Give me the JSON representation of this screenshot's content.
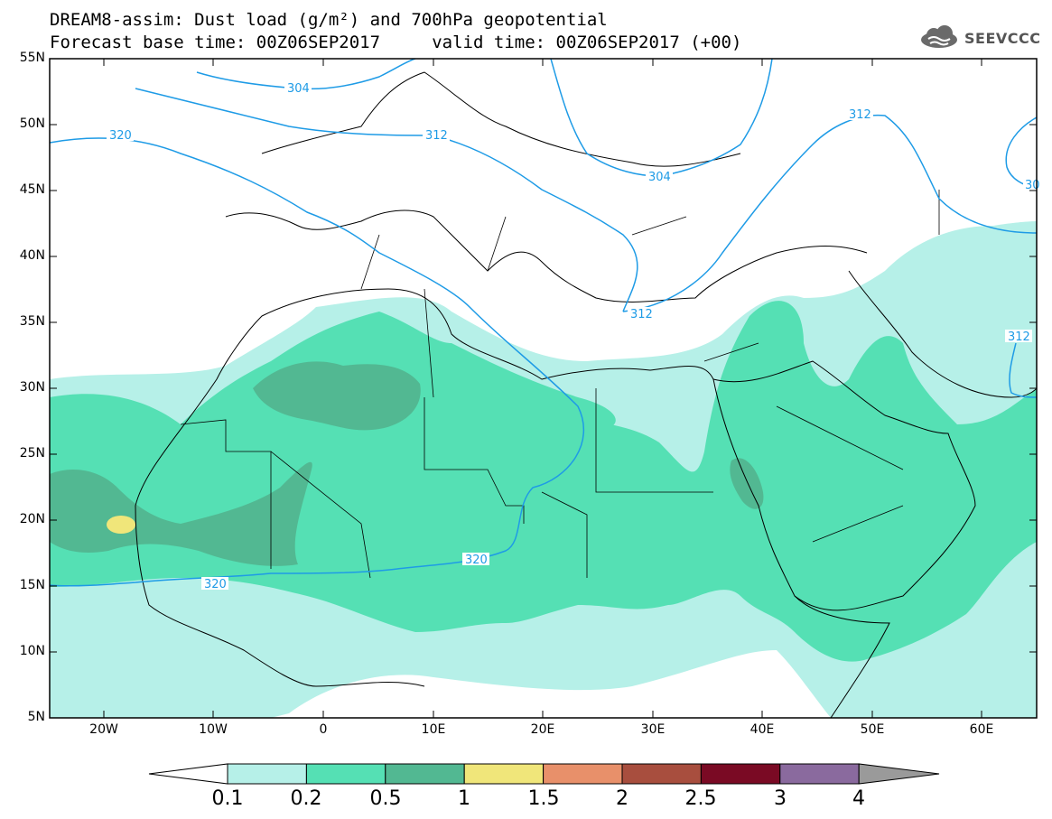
{
  "title": {
    "line1": "DREAM8-assim: Dust load (g/m²) and 700hPa geopotential",
    "line2": "Forecast base time: 00Z06SEP2017     valid time: 00Z06SEP2017 (+00)"
  },
  "logo": {
    "text": "SEEVCCC",
    "icon": "cloud-icon"
  },
  "axes": {
    "lat_labels": [
      "55N",
      "50N",
      "45N",
      "40N",
      "35N",
      "30N",
      "25N",
      "20N",
      "15N",
      "10N",
      "5N"
    ],
    "lon_labels": [
      "20W",
      "10W",
      "0",
      "10E",
      "20E",
      "30E",
      "40E",
      "50E",
      "60E"
    ],
    "lon_range": [
      -25,
      65
    ],
    "lat_range": [
      5,
      55
    ]
  },
  "contours": {
    "labels": [
      "304",
      "304",
      "312",
      "312",
      "312",
      "312",
      "320",
      "320",
      "320",
      "30"
    ],
    "line_color": "#1e9be6"
  },
  "colorbar": {
    "levels": [
      "0.1",
      "0.2",
      "0.5",
      "1",
      "1.5",
      "2",
      "2.5",
      "3",
      "4"
    ],
    "colors": [
      "#b6f0e8",
      "#55e0b4",
      "#52b892",
      "#f0e67a",
      "#e8906a",
      "#a84e3e",
      "#7a0a24",
      "#8a6a9e"
    ],
    "left_arrow_color": "#ffffff",
    "right_arrow_color": "#9a9a9a"
  }
}
